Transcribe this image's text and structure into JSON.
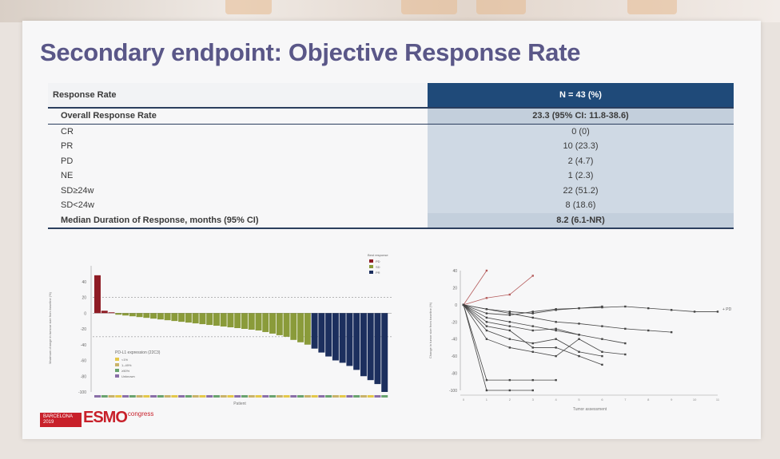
{
  "title": "Secondary endpoint: Objective Response Rate",
  "table": {
    "header": {
      "label": "Response Rate",
      "value": "N = 43 (%)"
    },
    "rows": [
      {
        "label": "Overall Response Rate",
        "value": "23.3 (95% CI: 11.8-38.6)",
        "style": "bold"
      },
      {
        "label": "CR",
        "value": "0 (0)",
        "style": "sub"
      },
      {
        "label": "PR",
        "value": "10 (23.3)",
        "style": "sub"
      },
      {
        "label": "PD",
        "value": "2 (4.7)",
        "style": "sub"
      },
      {
        "label": "NE",
        "value": "1 (2.3)",
        "style": "sub"
      },
      {
        "label": "SD≥24w",
        "value": "22 (51.2)",
        "style": "sub"
      },
      {
        "label": "SD<24w",
        "value": "8 (18.6)",
        "style": "sub"
      },
      {
        "label": "Median Duration of Response, months (95% CI)",
        "value": "8.2 (6.1-NR)",
        "style": "bold last"
      }
    ]
  },
  "waterfall": {
    "xlabel": "Patient",
    "ylabel": "Maximum change in tumour size from baseline (%)",
    "legend_title": "Best response",
    "legend": [
      {
        "name": "PD",
        "color": "#8e1b24"
      },
      {
        "name": "SD",
        "color": "#8a9b3a"
      },
      {
        "name": "PR",
        "color": "#1c2f5e"
      }
    ],
    "inset_title": "PD-L1 expression (22C3)",
    "inset_legend": [
      {
        "name": "<1%",
        "color": "#e4c84a"
      },
      {
        "name": "1–49%",
        "color": "#c9b36a"
      },
      {
        "name": "≥50%",
        "color": "#6aa36f"
      },
      {
        "name": "Unknown",
        "color": "#8a6fa8"
      }
    ]
  },
  "spider_legend": "+ PD",
  "spider_xlabel": "Tumor assessment",
  "spider_ylabel": "Change in tumor size from baseline (%)",
  "logo": {
    "box": "BARCELONA 2019",
    "name": "ESMO",
    "suffix": "congress"
  },
  "chart_data": [
    {
      "type": "bar",
      "name": "waterfall",
      "ylim": [
        -100,
        60
      ],
      "yticks": [
        40,
        20,
        0,
        -20,
        -40,
        -60,
        -80,
        -100
      ],
      "ref_lines": [
        20,
        -30
      ],
      "values": [
        48,
        3,
        1,
        -2,
        -3,
        -4,
        -5,
        -6,
        -7,
        -8,
        -9,
        -10,
        -11,
        -12,
        -13,
        -14,
        -15,
        -16,
        -17,
        -18,
        -19,
        -20,
        -21,
        -22,
        -24,
        -26,
        -28,
        -30,
        -34,
        -37,
        -40,
        -45,
        -50,
        -55,
        -60,
        -63,
        -67,
        -72,
        -80,
        -85,
        -90,
        -100
      ],
      "categories": [
        "PD",
        "PD",
        "PD",
        "SD",
        "SD",
        "SD",
        "SD",
        "SD",
        "SD",
        "SD",
        "SD",
        "SD",
        "SD",
        "SD",
        "SD",
        "SD",
        "SD",
        "SD",
        "SD",
        "SD",
        "SD",
        "SD",
        "SD",
        "SD",
        "SD",
        "SD",
        "SD",
        "SD",
        "SD",
        "SD",
        "SD",
        "PR",
        "PR",
        "PR",
        "PR",
        "PR",
        "PR",
        "PR",
        "PR",
        "PR",
        "PR",
        "PR"
      ]
    },
    {
      "type": "line",
      "name": "spider",
      "ylim": [
        -100,
        40
      ],
      "yticks": [
        40,
        20,
        0,
        -20,
        -40,
        -60,
        -80,
        -100
      ],
      "xticks": [
        0,
        1,
        2,
        3,
        4,
        5,
        6,
        7,
        8,
        9,
        10,
        11
      ],
      "series": [
        [
          0,
          40
        ],
        [
          0,
          8,
          12,
          34
        ],
        [
          0,
          -5,
          -8,
          -10,
          -6,
          -4,
          -2
        ],
        [
          0,
          -10,
          -12,
          -8,
          -5,
          -4,
          -3,
          -2,
          -4,
          -6,
          -8,
          -8
        ],
        [
          0,
          -20,
          -25,
          -30,
          -28,
          -35,
          -40,
          -45
        ],
        [
          0,
          -30,
          -40,
          -45,
          -40,
          -55,
          -60
        ],
        [
          0,
          -40,
          -50,
          -55,
          -60,
          -40,
          -55,
          -58
        ],
        [
          0,
          -15,
          -20,
          -25,
          -30,
          -35
        ],
        [
          0,
          -88,
          -88,
          -88,
          -88
        ],
        [
          0,
          -100,
          -100,
          -100
        ],
        [
          0,
          -5,
          -10,
          -15,
          -20,
          -22,
          -25,
          -28,
          -30,
          -32
        ],
        [
          0,
          -25,
          -30,
          -50,
          -50,
          -60,
          -70
        ]
      ]
    }
  ]
}
